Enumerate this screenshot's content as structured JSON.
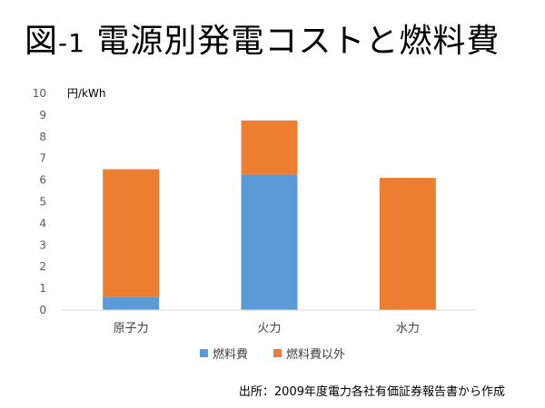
{
  "slide": {
    "title_prefix": "図",
    "title_num": "-1",
    "title_main": "電源別発電コストと燃料費",
    "source": "出所：2009年度電力各社有価証券報告書から作成"
  },
  "colors": {
    "fuel": "#5B9BD5",
    "non_fuel": "#ED7D31",
    "axis": "#D9D9D9"
  },
  "chart_data": {
    "type": "bar",
    "stacked": true,
    "unit_label": "円/kWh",
    "categories": [
      "原子力",
      "火力",
      "水力"
    ],
    "series": [
      {
        "name": "燃料費",
        "values": [
          0.6,
          6.25,
          0
        ]
      },
      {
        "name": "燃料費以外",
        "values": [
          5.9,
          2.5,
          6.1
        ]
      }
    ],
    "ylim": [
      0,
      10
    ],
    "yticks": [
      0,
      1,
      2,
      3,
      4,
      5,
      6,
      7,
      8,
      9,
      10
    ],
    "grid": false,
    "legend_position": "bottom"
  }
}
